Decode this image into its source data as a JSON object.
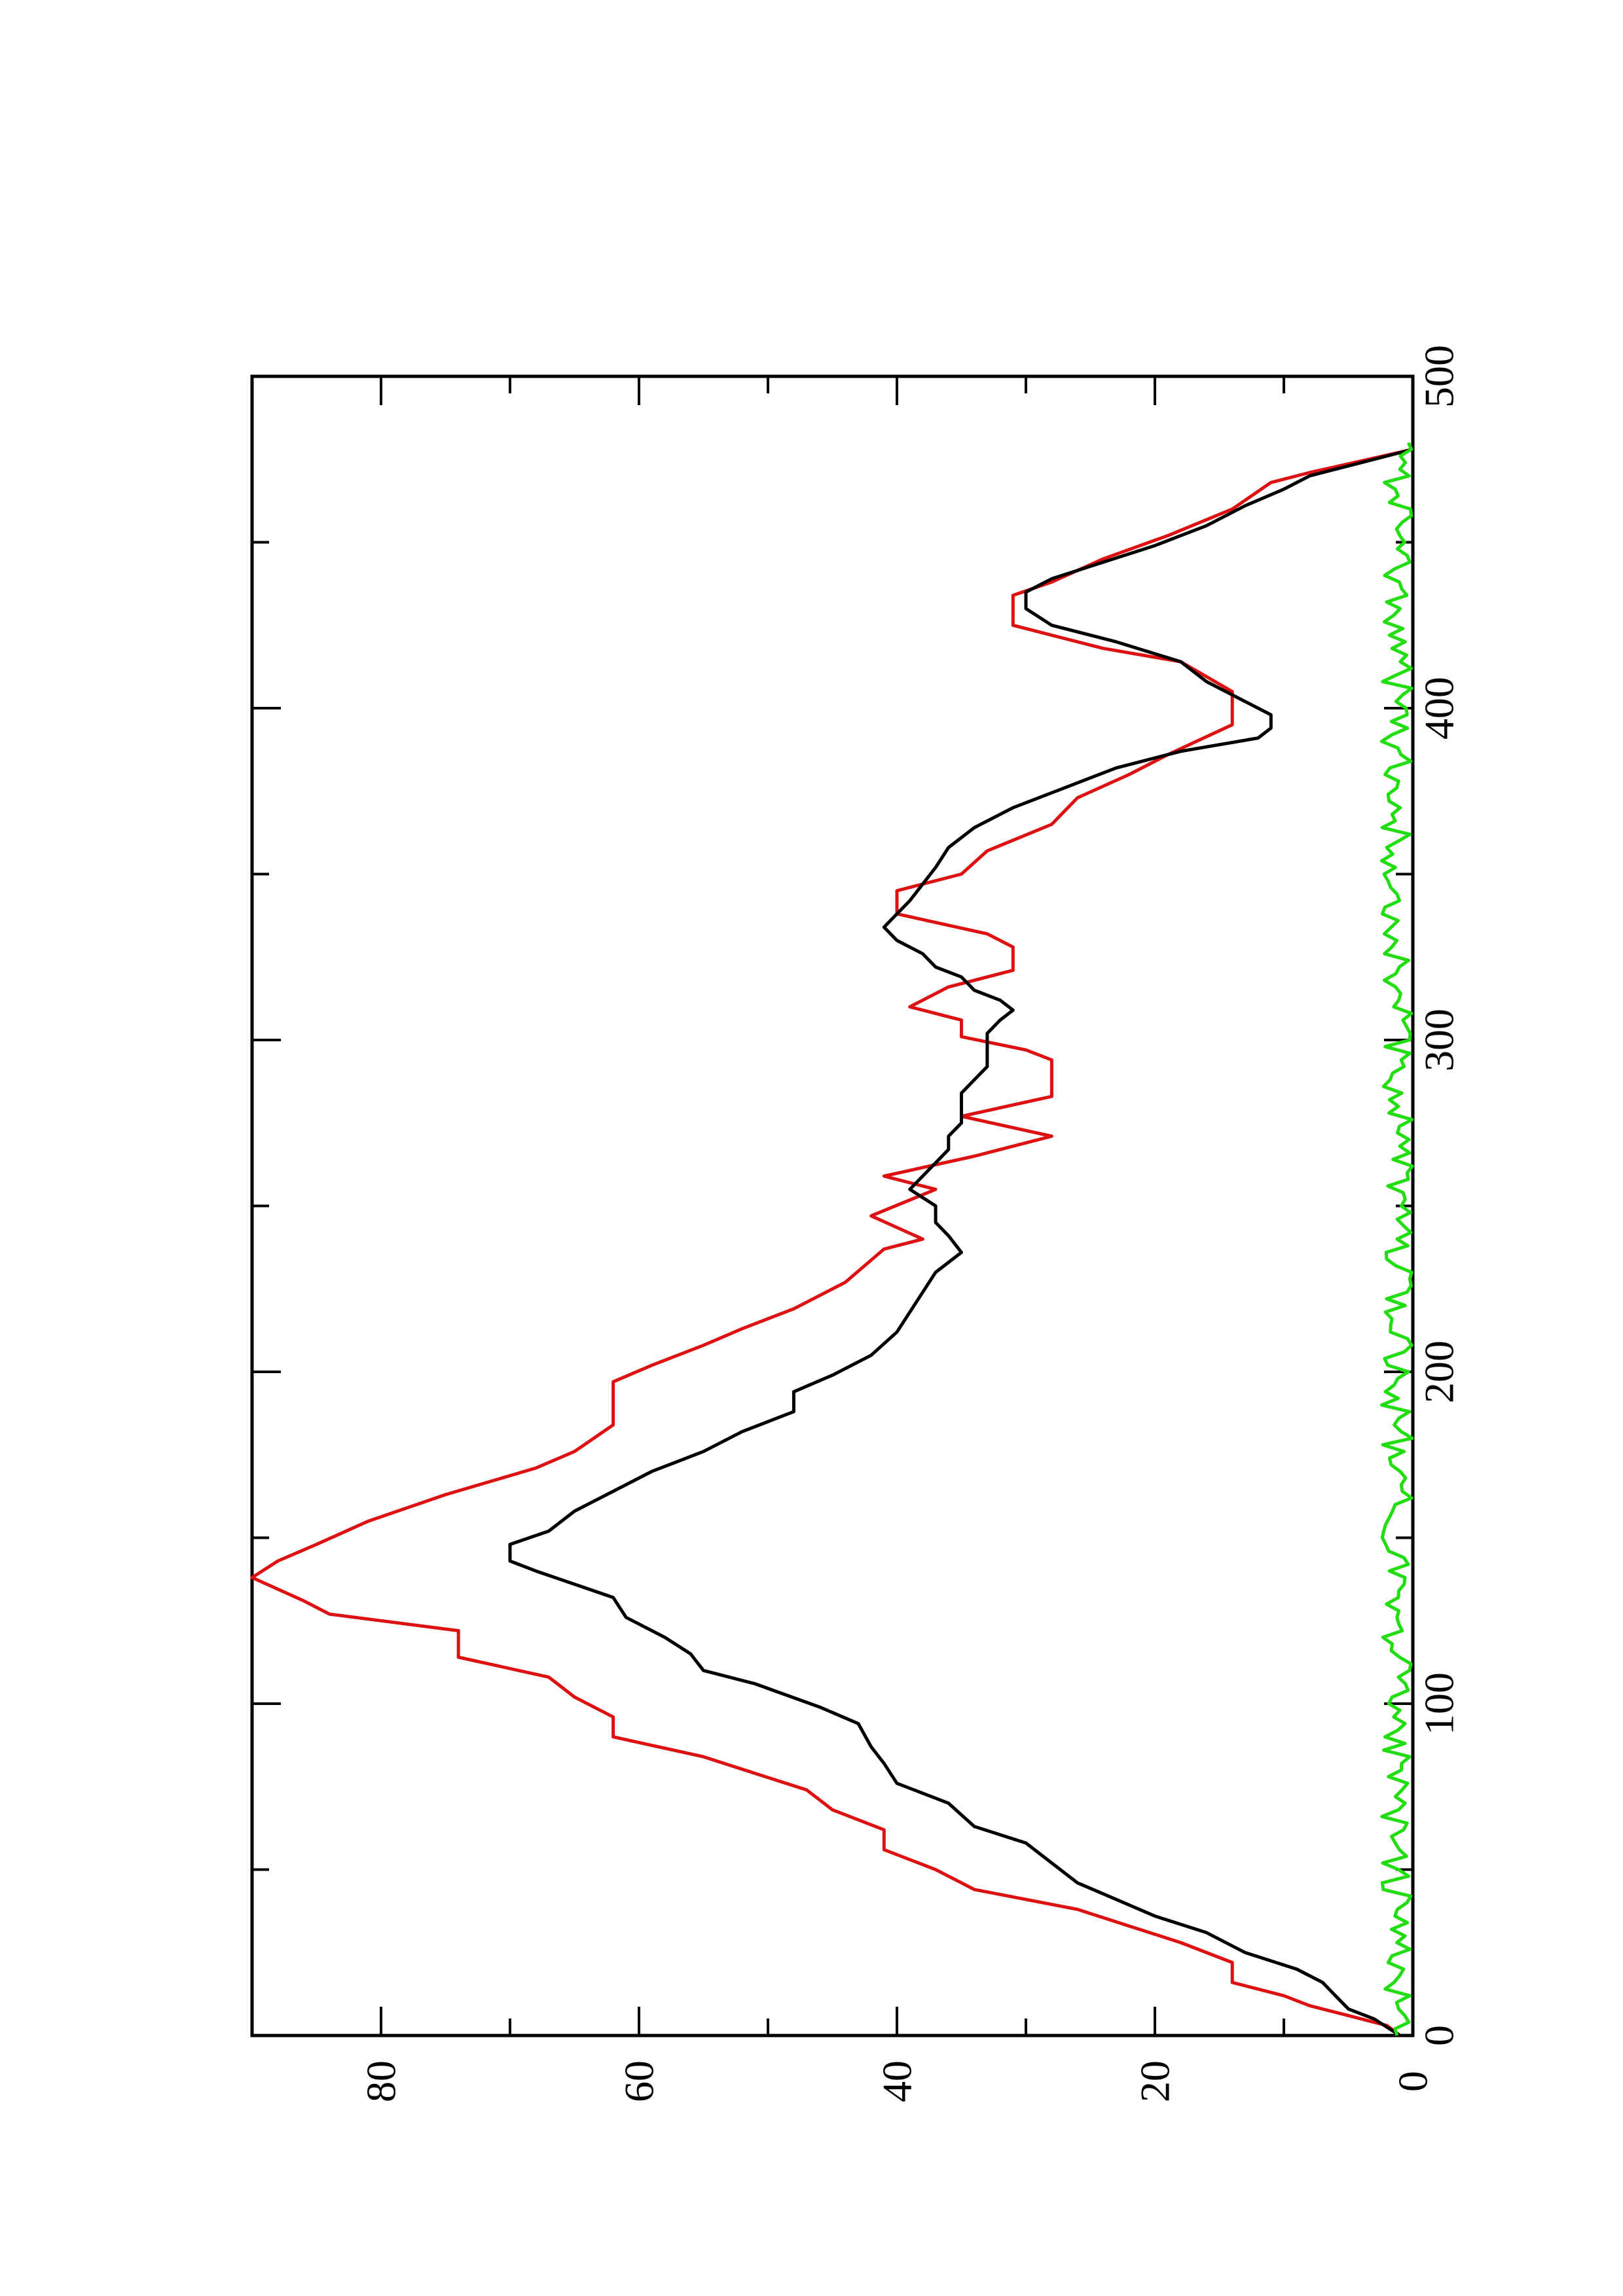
{
  "chart_data": {
    "type": "line",
    "orientation": "rotated-90-ccw",
    "title": "",
    "xlabel": "",
    "ylabel": "",
    "xlim": [
      0,
      500
    ],
    "ylim": [
      0,
      90
    ],
    "grid": false,
    "x_ticks": [
      0,
      100,
      200,
      300,
      400,
      500
    ],
    "x_tick_labels": [
      "0",
      "100",
      "200",
      "300",
      "400",
      "500"
    ],
    "x_minor_ticks": [
      50,
      150,
      250,
      350,
      450
    ],
    "y_ticks": [
      0,
      20,
      40,
      60,
      80
    ],
    "y_tick_labels": [
      "0",
      "20",
      "40",
      "60",
      "80"
    ],
    "y_minor_ticks": [
      10,
      30,
      50,
      70
    ],
    "series": [
      {
        "color": "#dd1111",
        "style": "step",
        "points": [
          [
            0,
            1
          ],
          [
            3,
            2
          ],
          [
            6,
            5
          ],
          [
            9,
            8
          ],
          [
            12,
            10
          ],
          [
            16,
            14
          ],
          [
            22,
            14
          ],
          [
            28,
            18
          ],
          [
            33,
            22
          ],
          [
            38,
            26
          ],
          [
            44,
            34
          ],
          [
            50,
            37
          ],
          [
            56,
            41
          ],
          [
            62,
            41
          ],
          [
            68,
            45
          ],
          [
            74,
            47
          ],
          [
            79,
            51
          ],
          [
            84,
            55
          ],
          [
            90,
            62
          ],
          [
            96,
            62
          ],
          [
            102,
            65
          ],
          [
            108,
            67
          ],
          [
            114,
            74
          ],
          [
            122,
            74
          ],
          [
            127,
            84
          ],
          [
            131,
            86
          ],
          [
            138,
            91
          ],
          [
            143,
            88
          ],
          [
            148,
            85
          ],
          [
            155,
            81
          ],
          [
            163,
            75
          ],
          [
            171,
            68
          ],
          [
            176,
            65
          ],
          [
            184,
            62
          ],
          [
            197,
            62
          ],
          [
            202,
            59
          ],
          [
            208,
            55
          ],
          [
            213,
            52
          ],
          [
            219,
            48
          ],
          [
            227,
            44
          ],
          [
            237,
            41
          ],
          [
            240,
            38
          ],
          [
            247,
            42
          ],
          [
            255,
            37
          ],
          [
            259,
            41
          ],
          [
            265,
            34
          ],
          [
            271,
            28
          ],
          [
            277,
            35
          ],
          [
            283,
            28
          ],
          [
            294,
            28
          ],
          [
            297,
            30
          ],
          [
            301,
            35
          ],
          [
            306,
            35
          ],
          [
            310,
            39
          ],
          [
            316,
            36
          ],
          [
            321,
            31
          ],
          [
            328,
            31
          ],
          [
            332,
            33
          ],
          [
            338,
            40
          ],
          [
            345,
            40
          ],
          [
            350,
            35
          ],
          [
            357,
            33
          ],
          [
            365,
            28
          ],
          [
            373,
            26
          ],
          [
            380,
            22
          ],
          [
            386,
            19
          ],
          [
            395,
            14
          ],
          [
            405,
            14
          ],
          [
            414,
            18
          ],
          [
            418,
            24
          ],
          [
            425,
            31
          ],
          [
            434,
            31
          ],
          [
            438,
            28
          ],
          [
            445,
            24
          ],
          [
            452,
            19
          ],
          [
            460,
            14
          ],
          [
            468,
            11
          ],
          [
            471,
            8
          ],
          [
            478,
            0
          ]
        ]
      },
      {
        "color": "#000000",
        "style": "line",
        "points": [
          [
            0,
            1
          ],
          [
            5,
            3
          ],
          [
            8,
            5
          ],
          [
            12,
            6
          ],
          [
            16,
            7
          ],
          [
            20,
            9
          ],
          [
            25,
            13
          ],
          [
            31,
            16
          ],
          [
            36,
            20
          ],
          [
            41,
            23
          ],
          [
            46,
            26
          ],
          [
            52,
            28
          ],
          [
            58,
            30
          ],
          [
            63,
            34
          ],
          [
            70,
            36
          ],
          [
            76,
            40
          ],
          [
            82,
            41
          ],
          [
            87,
            42
          ],
          [
            94,
            43
          ],
          [
            99,
            46
          ],
          [
            106,
            51
          ],
          [
            110,
            55
          ],
          [
            115,
            56
          ],
          [
            120,
            58
          ],
          [
            126,
            61
          ],
          [
            132,
            62
          ],
          [
            136,
            65
          ],
          [
            140,
            68
          ],
          [
            143,
            70
          ],
          [
            148,
            70
          ],
          [
            152,
            67
          ],
          [
            158,
            65
          ],
          [
            164,
            62
          ],
          [
            170,
            59
          ],
          [
            176,
            55
          ],
          [
            182,
            52
          ],
          [
            188,
            48
          ],
          [
            194,
            48
          ],
          [
            199,
            45
          ],
          [
            205,
            42
          ],
          [
            212,
            40
          ],
          [
            218,
            39
          ],
          [
            224,
            38
          ],
          [
            230,
            37
          ],
          [
            236,
            35
          ],
          [
            241,
            36
          ],
          [
            245,
            37
          ],
          [
            250,
            37
          ],
          [
            255,
            39
          ],
          [
            259,
            38
          ],
          [
            263,
            37
          ],
          [
            267,
            36
          ],
          [
            271,
            36
          ],
          [
            275,
            35
          ],
          [
            279,
            35
          ],
          [
            284,
            35
          ],
          [
            288,
            34
          ],
          [
            292,
            33
          ],
          [
            298,
            33
          ],
          [
            302,
            33
          ],
          [
            306,
            32
          ],
          [
            309,
            31
          ],
          [
            312,
            32
          ],
          [
            315,
            34
          ],
          [
            319,
            35
          ],
          [
            322,
            37
          ],
          [
            326,
            38
          ],
          [
            330,
            40
          ],
          [
            334,
            41
          ],
          [
            338,
            40
          ],
          [
            342,
            39
          ],
          [
            347,
            38
          ],
          [
            352,
            37
          ],
          [
            358,
            36
          ],
          [
            364,
            34
          ],
          [
            370,
            31
          ],
          [
            376,
            27
          ],
          [
            382,
            23
          ],
          [
            387,
            18
          ],
          [
            391,
            12
          ],
          [
            394,
            11
          ],
          [
            398,
            11
          ],
          [
            402,
            13
          ],
          [
            408,
            16
          ],
          [
            414,
            18
          ],
          [
            420,
            23
          ],
          [
            425,
            28
          ],
          [
            430,
            30
          ],
          [
            435,
            30
          ],
          [
            439,
            28
          ],
          [
            444,
            24
          ],
          [
            449,
            20
          ],
          [
            455,
            16
          ],
          [
            461,
            13
          ],
          [
            466,
            10
          ],
          [
            470,
            8
          ],
          [
            474,
            4
          ],
          [
            478,
            0
          ]
        ]
      },
      {
        "color": "#22dd11",
        "style": "noise",
        "baseline": 1,
        "amplitude": 2.4,
        "x_range": [
          0,
          480
        ],
        "step": 2
      }
    ]
  }
}
